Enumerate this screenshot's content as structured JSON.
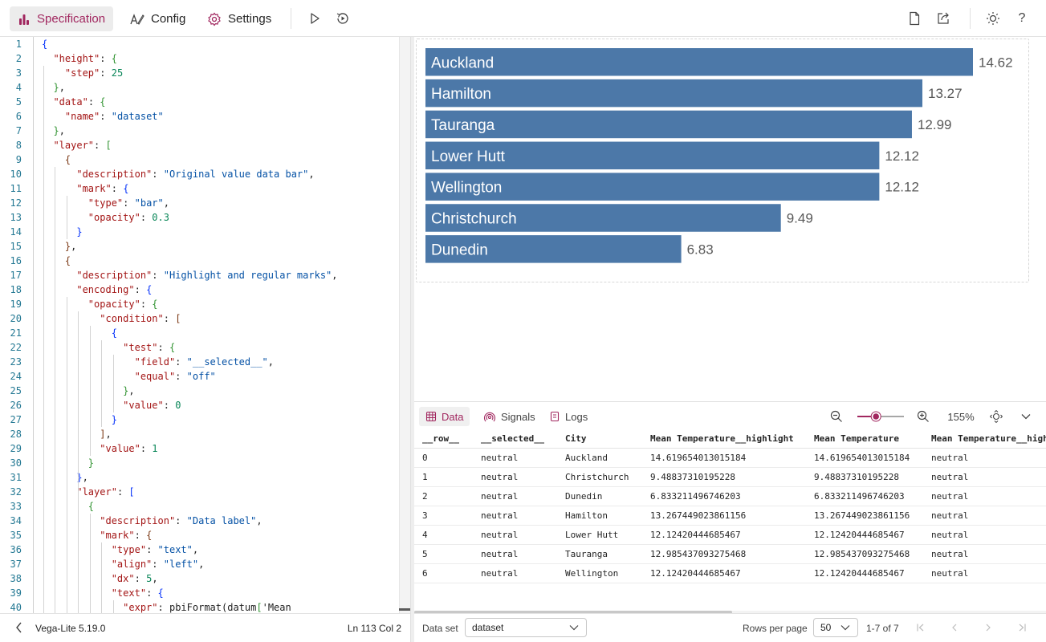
{
  "toolbar": {
    "tabs": [
      {
        "label": "Specification",
        "icon": "bar-chart-icon",
        "active": true
      },
      {
        "label": "Config",
        "icon": "pen-icon",
        "active": false
      },
      {
        "label": "Settings",
        "icon": "gear-icon",
        "active": false
      }
    ],
    "actions_left": [
      "play-icon",
      "auto-run-icon"
    ],
    "actions_right": [
      "new-file-icon",
      "share-icon",
      "theme-icon",
      "help-icon"
    ],
    "accent_color": "#a1275f"
  },
  "editor": {
    "lines": [
      "{",
      "  \"height\": {",
      "    \"step\": 25",
      "  },",
      "  \"data\": {",
      "    \"name\": \"dataset\"",
      "  },",
      "  \"layer\": [",
      "    {",
      "      \"description\": \"Original value data bar\",",
      "      \"mark\": {",
      "        \"type\": \"bar\",",
      "        \"opacity\": 0.3",
      "      }",
      "    },",
      "    {",
      "      \"description\": \"Highlight and regular marks\",",
      "      \"encoding\": {",
      "        \"opacity\": {",
      "          \"condition\": [",
      "            {",
      "              \"test\": {",
      "                \"field\": \"__selected__\",",
      "                \"equal\": \"off\"",
      "              },",
      "              \"value\": 0",
      "            }",
      "          ],",
      "          \"value\": 1",
      "        }",
      "      },",
      "      \"layer\": [",
      "        {",
      "          \"description\": \"Data label\",",
      "          \"mark\": {",
      "            \"type\": \"text\",",
      "            \"align\": \"left\",",
      "            \"dx\": 5,",
      "            \"text\": {",
      "              \"expr\": \"pbiFormat(datum['Mean"
    ],
    "version": "Vega-Lite 5.19.0",
    "cursor": "Ln 113 Col 2"
  },
  "chart_data": {
    "type": "bar",
    "orientation": "horizontal",
    "categories": [
      "Auckland",
      "Hamilton",
      "Tauranga",
      "Lower Hutt",
      "Wellington",
      "Christchurch",
      "Dunedin"
    ],
    "values": [
      14.62,
      13.27,
      12.99,
      12.12,
      12.12,
      9.49,
      6.83
    ],
    "data_labels": [
      "14.62",
      "13.27",
      "12.99",
      "12.12",
      "12.12",
      "9.49",
      "6.83"
    ],
    "xlim": [
      0,
      15
    ],
    "bar_color": "#4c78a8",
    "label_inside_bar": true,
    "grid": false
  },
  "datapanel": {
    "tabs": [
      {
        "label": "Data",
        "icon": "table-icon",
        "active": true
      },
      {
        "label": "Signals",
        "icon": "signal-icon",
        "active": false
      },
      {
        "label": "Logs",
        "icon": "log-icon",
        "active": false
      }
    ],
    "zoom": "155%",
    "zoom_level": 0.4,
    "columns": [
      "__row__",
      "__selected__",
      "City",
      "Mean Temperature__highlight",
      "Mean Temperature",
      "Mean Temperature__highlight_status"
    ],
    "rows": [
      [
        "0",
        "neutral",
        "Auckland",
        "14.619654013015184",
        "14.619654013015184",
        "neutral"
      ],
      [
        "1",
        "neutral",
        "Christchurch",
        "9.48837310195228",
        "9.48837310195228",
        "neutral"
      ],
      [
        "2",
        "neutral",
        "Dunedin",
        "6.833211496746203",
        "6.833211496746203",
        "neutral"
      ],
      [
        "3",
        "neutral",
        "Hamilton",
        "13.267449023861156",
        "13.267449023861156",
        "neutral"
      ],
      [
        "4",
        "neutral",
        "Lower Hutt",
        "12.12420444685467",
        "12.12420444685467",
        "neutral"
      ],
      [
        "5",
        "neutral",
        "Tauranga",
        "12.985437093275468",
        "12.985437093275468",
        "neutral"
      ],
      [
        "6",
        "neutral",
        "Wellington",
        "12.12420444685467",
        "12.12420444685467",
        "neutral"
      ]
    ]
  },
  "footer": {
    "dataset_label": "Data set",
    "dataset_value": "dataset",
    "rows_per_page_label": "Rows per page",
    "rows_per_page_value": "50",
    "range": "1-7 of 7"
  }
}
